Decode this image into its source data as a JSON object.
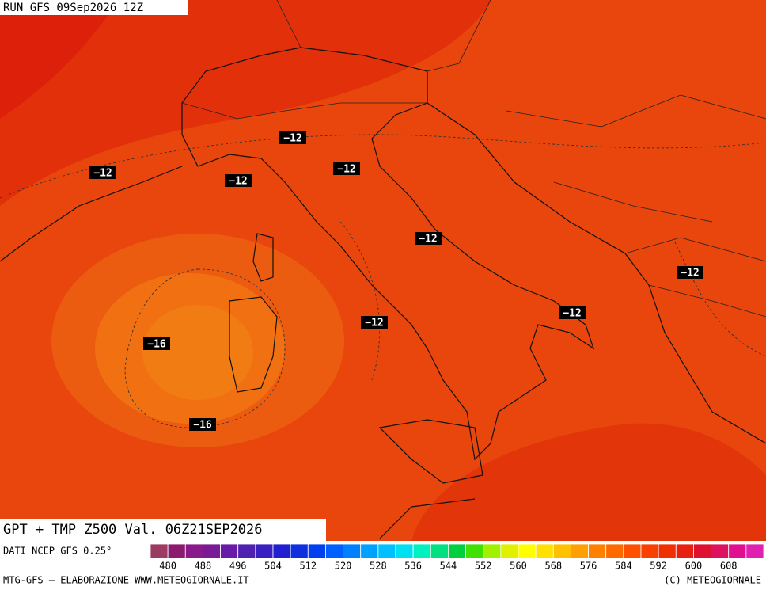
{
  "run_label": "RUN GFS 09Sep2026 12Z",
  "product_title": "GPT + TMP Z500 Val. 06Z21SEP2026",
  "source_note": "DATI NCEP GFS 0.25°",
  "footer_left": "MTG-GFS — ELABORAZIONE WWW.METEOGIORNALE.IT",
  "footer_right": "(C) METEOGIORNALE",
  "contour_labels": [
    "−12",
    "−12",
    "−12",
    "−12",
    "−12",
    "−12",
    "−12",
    "−12",
    "−16",
    "−16"
  ],
  "colorbar": {
    "colors": [
      "#9c3c64",
      "#8c1a6e",
      "#8a1a8a",
      "#7a1a96",
      "#6a1aa8",
      "#5020b0",
      "#3a20c0",
      "#2020d0",
      "#1030e0",
      "#0040f0",
      "#0060ff",
      "#0080ff",
      "#00a0ff",
      "#00c0ff",
      "#00e0f0",
      "#00f0c0",
      "#00e080",
      "#00d040",
      "#40e000",
      "#a0f000",
      "#e0f000",
      "#ffff00",
      "#ffe000",
      "#ffc000",
      "#ffa000",
      "#ff8000",
      "#ff6a00",
      "#ff5000",
      "#f84000",
      "#f03000",
      "#e82010",
      "#e01030",
      "#e01060",
      "#e01090",
      "#e020b0"
    ],
    "labels": [
      480,
      488,
      496,
      504,
      512,
      520,
      528,
      536,
      544,
      552,
      560,
      568,
      576,
      584,
      592,
      600,
      608
    ]
  }
}
